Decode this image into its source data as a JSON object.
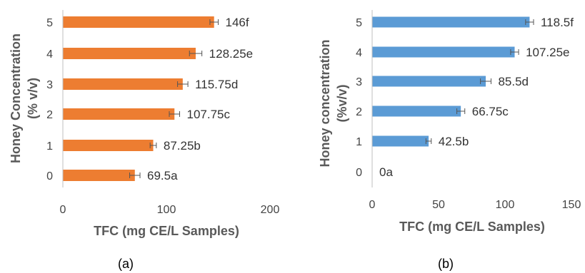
{
  "chart_data": [
    {
      "panel_label": "(a)",
      "type": "bar",
      "orientation": "horizontal",
      "ylabel": [
        "Honey Concentration",
        "(% v/v)"
      ],
      "xlabel": "TFC (mg CE/L Samples)",
      "categories": [
        "0",
        "1",
        "2",
        "3",
        "4",
        "5"
      ],
      "values": [
        69.5,
        87.25,
        107.75,
        115.75,
        128.25,
        146
      ],
      "errors": [
        5,
        3,
        5,
        5,
        6,
        4
      ],
      "data_labels": [
        "69.5a",
        "87.25b",
        "107.75c",
        "115.75d",
        "128.25e",
        "146f"
      ],
      "xlim": [
        0,
        200
      ],
      "xticks": [
        0,
        100,
        200
      ],
      "bar_color": "#ED7D31",
      "grid": false
    },
    {
      "panel_label": "(b)",
      "type": "bar",
      "orientation": "horizontal",
      "ylabel": [
        "Honey concentration",
        "(%v/v)"
      ],
      "xlabel": "TFC (mg CE/L Samples)",
      "categories": [
        "0",
        "1",
        "2",
        "3",
        "4",
        "5"
      ],
      "values": [
        0,
        42.5,
        66.75,
        85.5,
        107.25,
        118.5
      ],
      "errors": [
        0,
        2,
        3,
        4,
        3,
        3
      ],
      "data_labels": [
        "0a",
        "42.5b",
        "66.75c",
        "85.5d",
        "107.25e",
        "118.5f"
      ],
      "xlim": [
        0,
        150
      ],
      "xticks": [
        0,
        50,
        100,
        150
      ],
      "bar_color": "#5B9BD5",
      "grid": false
    }
  ]
}
